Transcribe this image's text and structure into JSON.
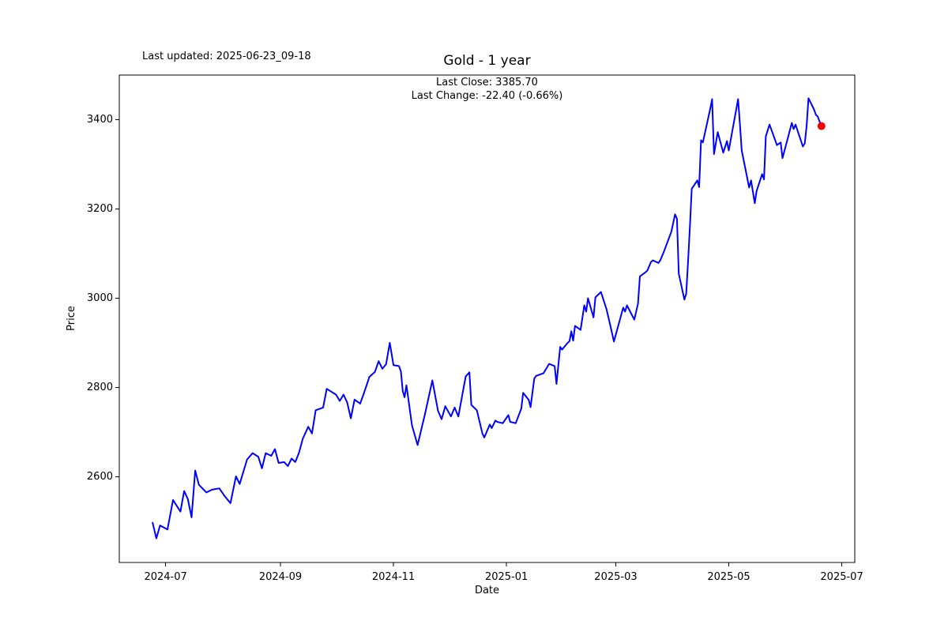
{
  "header": {
    "last_updated": "Last updated: 2025-06-23_09-18",
    "title": "Gold - 1 year",
    "subtitle_line1": "Last Close: 3385.70",
    "subtitle_line2": "Last Change: -22.40 (-0.66%)"
  },
  "chart_data": {
    "type": "line",
    "title": "Gold - 1 year",
    "xlabel": "Date",
    "ylabel": "Price",
    "last_close": 3385.7,
    "last_change": -22.4,
    "last_change_pct": -0.66,
    "line_color": "#0000ff",
    "marker_color": "#ff0000",
    "grid": false,
    "legend": "none",
    "ylim": [
      2408,
      3500
    ],
    "xlim": [
      "2024-06-06",
      "2025-07-08"
    ],
    "y_ticks": [
      2600,
      2800,
      3000,
      3200,
      3400
    ],
    "x_ticks": [
      {
        "label": "2024-07",
        "date": "2024-07-01"
      },
      {
        "label": "2024-09",
        "date": "2024-09-01"
      },
      {
        "label": "2024-11",
        "date": "2024-11-01"
      },
      {
        "label": "2025-01",
        "date": "2025-01-01"
      },
      {
        "label": "2025-03",
        "date": "2025-03-01"
      },
      {
        "label": "2025-05",
        "date": "2025-05-01"
      },
      {
        "label": "2025-07",
        "date": "2025-07-01"
      }
    ],
    "series": [
      {
        "name": "Gold",
        "points": [
          [
            "2024-06-24",
            2497
          ],
          [
            "2024-06-26",
            2462
          ],
          [
            "2024-06-28",
            2491
          ],
          [
            "2024-07-02",
            2482
          ],
          [
            "2024-07-05",
            2548
          ],
          [
            "2024-07-09",
            2522
          ],
          [
            "2024-07-11",
            2568
          ],
          [
            "2024-07-13",
            2550
          ],
          [
            "2024-07-15",
            2509
          ],
          [
            "2024-07-17",
            2614
          ],
          [
            "2024-07-19",
            2582
          ],
          [
            "2024-07-23",
            2565
          ],
          [
            "2024-07-26",
            2571
          ],
          [
            "2024-07-30",
            2574
          ],
          [
            "2024-08-02",
            2556
          ],
          [
            "2024-08-05",
            2541
          ],
          [
            "2024-08-08",
            2601
          ],
          [
            "2024-08-10",
            2584
          ],
          [
            "2024-08-14",
            2639
          ],
          [
            "2024-08-17",
            2653
          ],
          [
            "2024-08-20",
            2645
          ],
          [
            "2024-08-22",
            2619
          ],
          [
            "2024-08-24",
            2653
          ],
          [
            "2024-08-27",
            2647
          ],
          [
            "2024-08-29",
            2662
          ],
          [
            "2024-08-31",
            2631
          ],
          [
            "2024-09-03",
            2633
          ],
          [
            "2024-09-05",
            2624
          ],
          [
            "2024-09-07",
            2641
          ],
          [
            "2024-09-09",
            2633
          ],
          [
            "2024-09-11",
            2654
          ],
          [
            "2024-09-13",
            2685
          ],
          [
            "2024-09-16",
            2712
          ],
          [
            "2024-09-18",
            2697
          ],
          [
            "2024-09-20",
            2749
          ],
          [
            "2024-09-24",
            2755
          ],
          [
            "2024-09-26",
            2797
          ],
          [
            "2024-10-01",
            2784
          ],
          [
            "2024-10-03",
            2770
          ],
          [
            "2024-10-05",
            2784
          ],
          [
            "2024-10-07",
            2767
          ],
          [
            "2024-10-09",
            2731
          ],
          [
            "2024-10-11",
            2773
          ],
          [
            "2024-10-14",
            2764
          ],
          [
            "2024-10-16",
            2787
          ],
          [
            "2024-10-19",
            2824
          ],
          [
            "2024-10-22",
            2835
          ],
          [
            "2024-10-24",
            2859
          ],
          [
            "2024-10-26",
            2842
          ],
          [
            "2024-10-28",
            2852
          ],
          [
            "2024-10-30",
            2900
          ],
          [
            "2024-11-01",
            2850
          ],
          [
            "2024-11-04",
            2848
          ],
          [
            "2024-11-05",
            2836
          ],
          [
            "2024-11-06",
            2792
          ],
          [
            "2024-11-07",
            2778
          ],
          [
            "2024-11-08",
            2805
          ],
          [
            "2024-11-11",
            2715
          ],
          [
            "2024-11-14",
            2671
          ],
          [
            "2024-11-18",
            2740
          ],
          [
            "2024-11-22",
            2816
          ],
          [
            "2024-11-25",
            2748
          ],
          [
            "2024-11-27",
            2729
          ],
          [
            "2024-11-29",
            2758
          ],
          [
            "2024-12-02",
            2735
          ],
          [
            "2024-12-04",
            2755
          ],
          [
            "2024-12-06",
            2735
          ],
          [
            "2024-12-10",
            2825
          ],
          [
            "2024-12-12",
            2834
          ],
          [
            "2024-12-13",
            2761
          ],
          [
            "2024-12-16",
            2749
          ],
          [
            "2024-12-19",
            2697
          ],
          [
            "2024-12-20",
            2688
          ],
          [
            "2024-12-23",
            2717
          ],
          [
            "2024-12-24",
            2709
          ],
          [
            "2024-12-26",
            2726
          ],
          [
            "2024-12-27",
            2723
          ],
          [
            "2024-12-30",
            2720
          ],
          [
            "2025-01-02",
            2738
          ],
          [
            "2025-01-03",
            2723
          ],
          [
            "2025-01-06",
            2720
          ],
          [
            "2025-01-09",
            2753
          ],
          [
            "2025-01-10",
            2788
          ],
          [
            "2025-01-13",
            2772
          ],
          [
            "2025-01-14",
            2756
          ],
          [
            "2025-01-16",
            2820
          ],
          [
            "2025-01-17",
            2826
          ],
          [
            "2025-01-21",
            2832
          ],
          [
            "2025-01-24",
            2853
          ],
          [
            "2025-01-27",
            2848
          ],
          [
            "2025-01-28",
            2808
          ],
          [
            "2025-01-30",
            2891
          ],
          [
            "2025-01-31",
            2885
          ],
          [
            "2025-02-03",
            2900
          ],
          [
            "2025-02-04",
            2904
          ],
          [
            "2025-02-05",
            2926
          ],
          [
            "2025-02-06",
            2905
          ],
          [
            "2025-02-07",
            2938
          ],
          [
            "2025-02-10",
            2929
          ],
          [
            "2025-02-12",
            2984
          ],
          [
            "2025-02-13",
            2970
          ],
          [
            "2025-02-14",
            3000
          ],
          [
            "2025-02-17",
            2957
          ],
          [
            "2025-02-18",
            3002
          ],
          [
            "2025-02-21",
            3014
          ],
          [
            "2025-02-24",
            2975
          ],
          [
            "2025-02-26",
            2940
          ],
          [
            "2025-02-28",
            2903
          ],
          [
            "2025-03-05",
            2979
          ],
          [
            "2025-03-06",
            2970
          ],
          [
            "2025-03-07",
            2984
          ],
          [
            "2025-03-11",
            2952
          ],
          [
            "2025-03-13",
            2988
          ],
          [
            "2025-03-14",
            3049
          ],
          [
            "2025-03-17",
            3058
          ],
          [
            "2025-03-18",
            3062
          ],
          [
            "2025-03-20",
            3081
          ],
          [
            "2025-03-21",
            3085
          ],
          [
            "2025-03-24",
            3079
          ],
          [
            "2025-03-25",
            3085
          ],
          [
            "2025-03-27",
            3105
          ],
          [
            "2025-03-31",
            3149
          ],
          [
            "2025-04-01",
            3169
          ],
          [
            "2025-04-02",
            3188
          ],
          [
            "2025-04-03",
            3178
          ],
          [
            "2025-04-04",
            3055
          ],
          [
            "2025-04-07",
            2997
          ],
          [
            "2025-04-08",
            3010
          ],
          [
            "2025-04-09",
            3080
          ],
          [
            "2025-04-10",
            3160
          ],
          [
            "2025-04-11",
            3245
          ],
          [
            "2025-04-14",
            3264
          ],
          [
            "2025-04-15",
            3249
          ],
          [
            "2025-04-16",
            3354
          ],
          [
            "2025-04-17",
            3349
          ],
          [
            "2025-04-21",
            3425
          ],
          [
            "2025-04-22",
            3446
          ],
          [
            "2025-04-23",
            3323
          ],
          [
            "2025-04-25",
            3372
          ],
          [
            "2025-04-28",
            3326
          ],
          [
            "2025-04-30",
            3352
          ],
          [
            "2025-05-01",
            3331
          ],
          [
            "2025-05-06",
            3446
          ],
          [
            "2025-05-07",
            3390
          ],
          [
            "2025-05-08",
            3331
          ],
          [
            "2025-05-12",
            3248
          ],
          [
            "2025-05-13",
            3264
          ],
          [
            "2025-05-15",
            3213
          ],
          [
            "2025-05-16",
            3240
          ],
          [
            "2025-05-19",
            3278
          ],
          [
            "2025-05-20",
            3266
          ],
          [
            "2025-05-21",
            3363
          ],
          [
            "2025-05-23",
            3389
          ],
          [
            "2025-05-27",
            3343
          ],
          [
            "2025-05-29",
            3349
          ],
          [
            "2025-05-30",
            3314
          ],
          [
            "2025-06-02",
            3361
          ],
          [
            "2025-06-04",
            3393
          ],
          [
            "2025-06-05",
            3379
          ],
          [
            "2025-06-06",
            3389
          ],
          [
            "2025-06-09",
            3352
          ],
          [
            "2025-06-10",
            3340
          ],
          [
            "2025-06-11",
            3347
          ],
          [
            "2025-06-12",
            3385
          ],
          [
            "2025-06-13",
            3448
          ],
          [
            "2025-06-16",
            3423
          ],
          [
            "2025-06-17",
            3411
          ],
          [
            "2025-06-18",
            3407
          ],
          [
            "2025-06-19",
            3396
          ],
          [
            "2025-06-20",
            3385.7
          ]
        ]
      }
    ]
  }
}
